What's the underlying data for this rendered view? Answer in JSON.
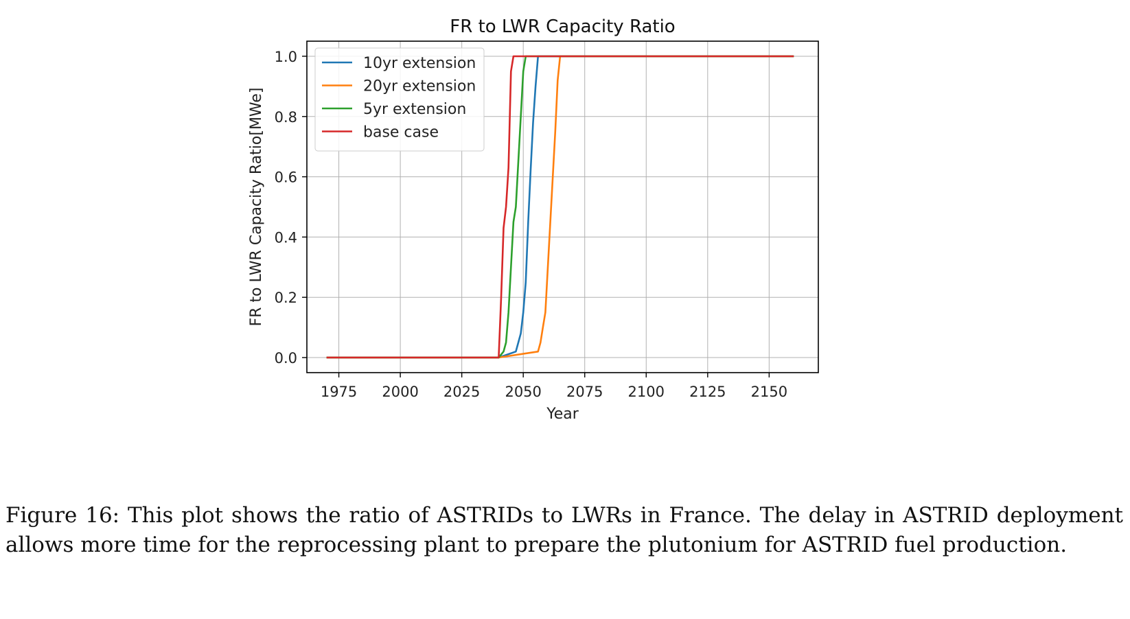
{
  "chart_data": {
    "type": "line",
    "title": "FR to LWR Capacity Ratio",
    "xlabel": "Year",
    "ylabel": "FR to LWR Capacity Ratio[MWe]",
    "xlim": [
      1962,
      2170
    ],
    "ylim": [
      -0.05,
      1.05
    ],
    "xticks": [
      1975,
      2000,
      2025,
      2050,
      2075,
      2100,
      2125,
      2150
    ],
    "yticks": [
      0.0,
      0.2,
      0.4,
      0.6,
      0.8,
      1.0
    ],
    "ytick_labels": [
      "0.0",
      "0.2",
      "0.4",
      "0.6",
      "0.8",
      "1.0"
    ],
    "grid": true,
    "legend_position": "top-left",
    "series": [
      {
        "name": "10yr extension",
        "color": "#1f77b4",
        "x": [
          1970,
          2040,
          2047,
          2048,
          2049,
          2050,
          2051,
          2052,
          2053,
          2054,
          2055,
          2056,
          2160
        ],
        "y": [
          0.0,
          0.0,
          0.02,
          0.05,
          0.08,
          0.15,
          0.25,
          0.45,
          0.62,
          0.78,
          0.9,
          1.0,
          1.0
        ]
      },
      {
        "name": "20yr extension",
        "color": "#ff7f0e",
        "x": [
          1970,
          2040,
          2056,
          2057,
          2058,
          2059,
          2060,
          2061,
          2062,
          2063,
          2064,
          2065,
          2160
        ],
        "y": [
          0.0,
          0.0,
          0.02,
          0.05,
          0.1,
          0.15,
          0.3,
          0.45,
          0.6,
          0.75,
          0.92,
          1.0,
          1.0
        ]
      },
      {
        "name": "5yr extension",
        "color": "#2ca02c",
        "x": [
          1970,
          2040,
          2042,
          2043,
          2044,
          2045,
          2046,
          2047,
          2048,
          2049,
          2050,
          2051,
          2160
        ],
        "y": [
          0.0,
          0.0,
          0.02,
          0.05,
          0.15,
          0.3,
          0.45,
          0.5,
          0.65,
          0.8,
          0.95,
          1.0,
          1.0
        ]
      },
      {
        "name": "base case",
        "color": "#d62728",
        "x": [
          1970,
          2040,
          2041,
          2042,
          2043,
          2044,
          2045,
          2046,
          2160
        ],
        "y": [
          0.0,
          0.0,
          0.2,
          0.43,
          0.5,
          0.63,
          0.95,
          1.0,
          1.0
        ]
      }
    ]
  },
  "caption": {
    "text": "Figure 16: This plot shows the ratio of ASTRIDs to LWRs in France. The delay in ASTRID deployment allows more time for the reprocessing plant to prepare the plutonium for ASTRID fuel production."
  }
}
